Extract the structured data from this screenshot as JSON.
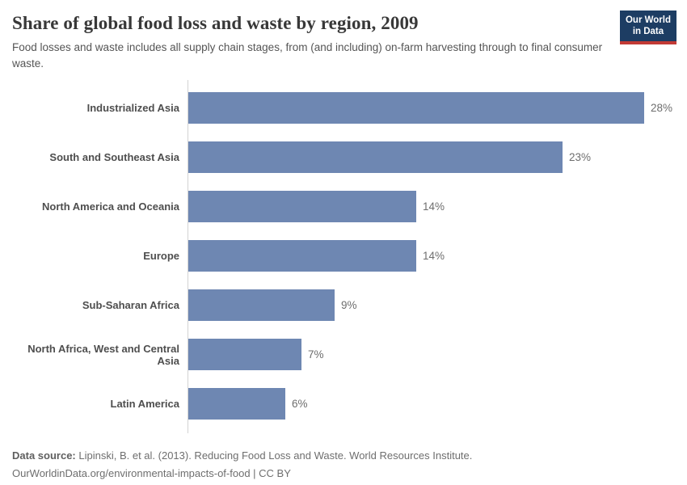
{
  "header": {
    "title": "Share of global food loss and waste by region, 2009",
    "subtitle": "Food losses and waste includes all supply chain stages, from (and including) on-farm harvesting through to final consumer waste.",
    "logo": {
      "line1": "Our World",
      "line2": "in Data"
    }
  },
  "chart_data": {
    "type": "bar",
    "orientation": "horizontal",
    "title": "Share of global food loss and waste by region, 2009",
    "subtitle": "Food losses and waste includes all supply chain stages, from (and including) on-farm harvesting through to final consumer waste.",
    "categories": [
      "Industrialized Asia",
      "South and Southeast Asia",
      "North America and Oceania",
      "Europe",
      "Sub-Saharan Africa",
      "North Africa, West and Central Asia",
      "Latin America"
    ],
    "values": [
      28,
      23,
      14,
      14,
      9,
      7,
      6
    ],
    "value_labels": [
      "28%",
      "23%",
      "14%",
      "14%",
      "9%",
      "7%",
      "6%"
    ],
    "unit": "%",
    "xlabel": "",
    "ylabel": "",
    "xlim": [
      0,
      28
    ],
    "grid": false,
    "legend": "none",
    "sorted": "descending"
  },
  "footer": {
    "data_source_label": "Data source:",
    "data_source_text": " Lipinski, B. et al. (2013). Reducing Food Loss and Waste. World Resources Institute.",
    "citation_line": "OurWorldinData.org/environmental-impacts-of-food | CC BY"
  },
  "colors": {
    "bar": "#6e87b2",
    "axis_line": "#d3d3d3",
    "logo_navy": "#1d3d63",
    "logo_red": "#c23a35",
    "title_text": "#383838",
    "subtitle_text": "#555555",
    "category_text": "#4e4e4e",
    "value_text": "#6e6e6e"
  }
}
